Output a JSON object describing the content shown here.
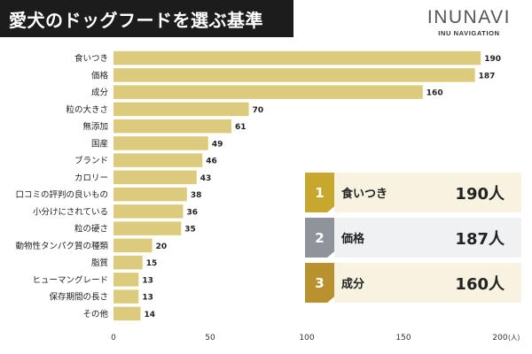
{
  "header": {
    "title": "愛犬のドッグフードを選ぶ基準",
    "brand_logo": "INUNAVI",
    "brand_sub": "INU NAVIGATION"
  },
  "chart_data": {
    "type": "bar",
    "orientation": "horizontal",
    "categories": [
      "食いつき",
      "価格",
      "成分",
      "粒の大きさ",
      "無添加",
      "国産",
      "ブランド",
      "カロリー",
      "口コミの評判の良いもの",
      "小分けにされている",
      "粒の硬さ",
      "動物性タンパク質の種類",
      "脂質",
      "ヒューマングレード",
      "保存期間の長さ",
      "その他"
    ],
    "values": [
      190,
      187,
      160,
      70,
      61,
      49,
      46,
      43,
      38,
      36,
      35,
      20,
      15,
      13,
      13,
      14
    ],
    "x_ticks": [
      "0",
      "50",
      "100",
      "150",
      "200"
    ],
    "unit": "(人)",
    "xlim": [
      0,
      200
    ],
    "grid": false,
    "bar_color": "#dccb7c"
  },
  "ranking": [
    {
      "rank": "1",
      "label": "食いつき",
      "value": "190人",
      "color": "#c8a72e",
      "bg": "#f8f3e1"
    },
    {
      "rank": "2",
      "label": "価格",
      "value": "187人",
      "color": "#8e949a",
      "bg": "#f0f1f3"
    },
    {
      "rank": "3",
      "label": "成分",
      "value": "160人",
      "color": "#b9922f",
      "bg": "#f8f3e1"
    }
  ]
}
